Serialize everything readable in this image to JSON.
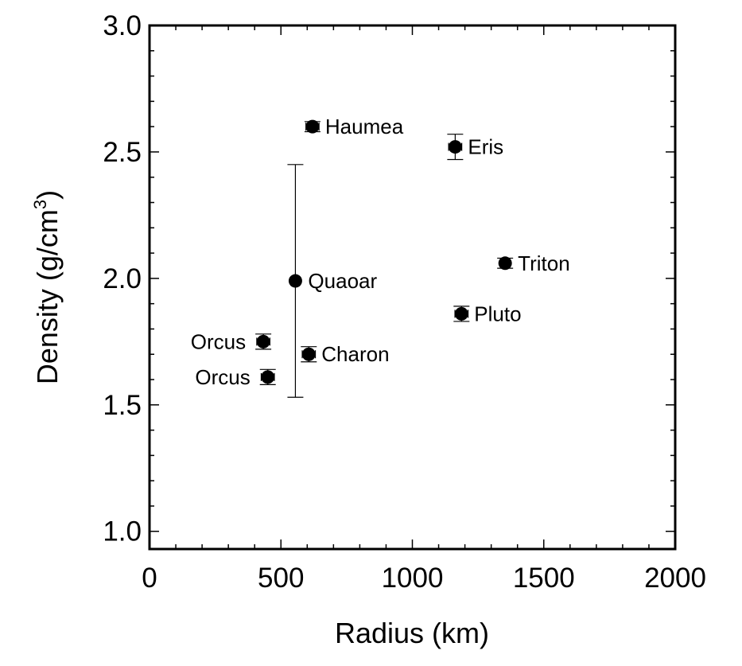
{
  "chart_data": {
    "type": "scatter",
    "title": "",
    "xlabel": "Radius (km)",
    "ylabel": "Density (g/cm",
    "ylabel_sup": "3",
    "ylabel_end": ")",
    "xlim": [
      0,
      2000
    ],
    "ylim": [
      0.93,
      3.0
    ],
    "x_ticks": [
      0,
      500,
      1000,
      1500,
      2000
    ],
    "x_tick_labels": [
      "0",
      "500",
      "1000",
      "1500",
      "2000"
    ],
    "y_ticks": [
      1.0,
      1.5,
      2.0,
      2.5,
      3.0
    ],
    "y_tick_labels": [
      "1.0",
      "1.5",
      "2.0",
      "2.5",
      "3.0"
    ],
    "x_minor_step": 100,
    "y_minor_step": 0.1,
    "grid": false,
    "legend": "none",
    "marker_color": "#000000",
    "points": [
      {
        "name": "Haumea",
        "x": 620,
        "y": 2.6,
        "xerr": 25,
        "yerr": 0.02,
        "label_side": "right"
      },
      {
        "name": "Eris",
        "x": 1163,
        "y": 2.52,
        "xerr": 25,
        "yerr": 0.05,
        "label_side": "right"
      },
      {
        "name": "Quaoar",
        "x": 555,
        "y": 1.99,
        "xerr": 0,
        "yerr_low": 0.46,
        "yerr_high": 0.46,
        "label_side": "right"
      },
      {
        "name": "Triton",
        "x": 1353,
        "y": 2.06,
        "xerr": 0,
        "yerr": 0.02,
        "label_side": "right"
      },
      {
        "name": "Pluto",
        "x": 1187,
        "y": 1.86,
        "xerr": 25,
        "yerr": 0.03,
        "label_side": "right"
      },
      {
        "name": "Charon",
        "x": 606,
        "y": 1.7,
        "xerr": 25,
        "yerr": 0.03,
        "label_side": "right"
      },
      {
        "name": "Orcus",
        "x": 433,
        "y": 1.75,
        "xerr": 25,
        "yerr": 0.03,
        "label_side": "left"
      },
      {
        "name": "Orcus",
        "x": 450,
        "y": 1.61,
        "xerr": 25,
        "yerr": 0.03,
        "label_side": "left"
      }
    ]
  }
}
